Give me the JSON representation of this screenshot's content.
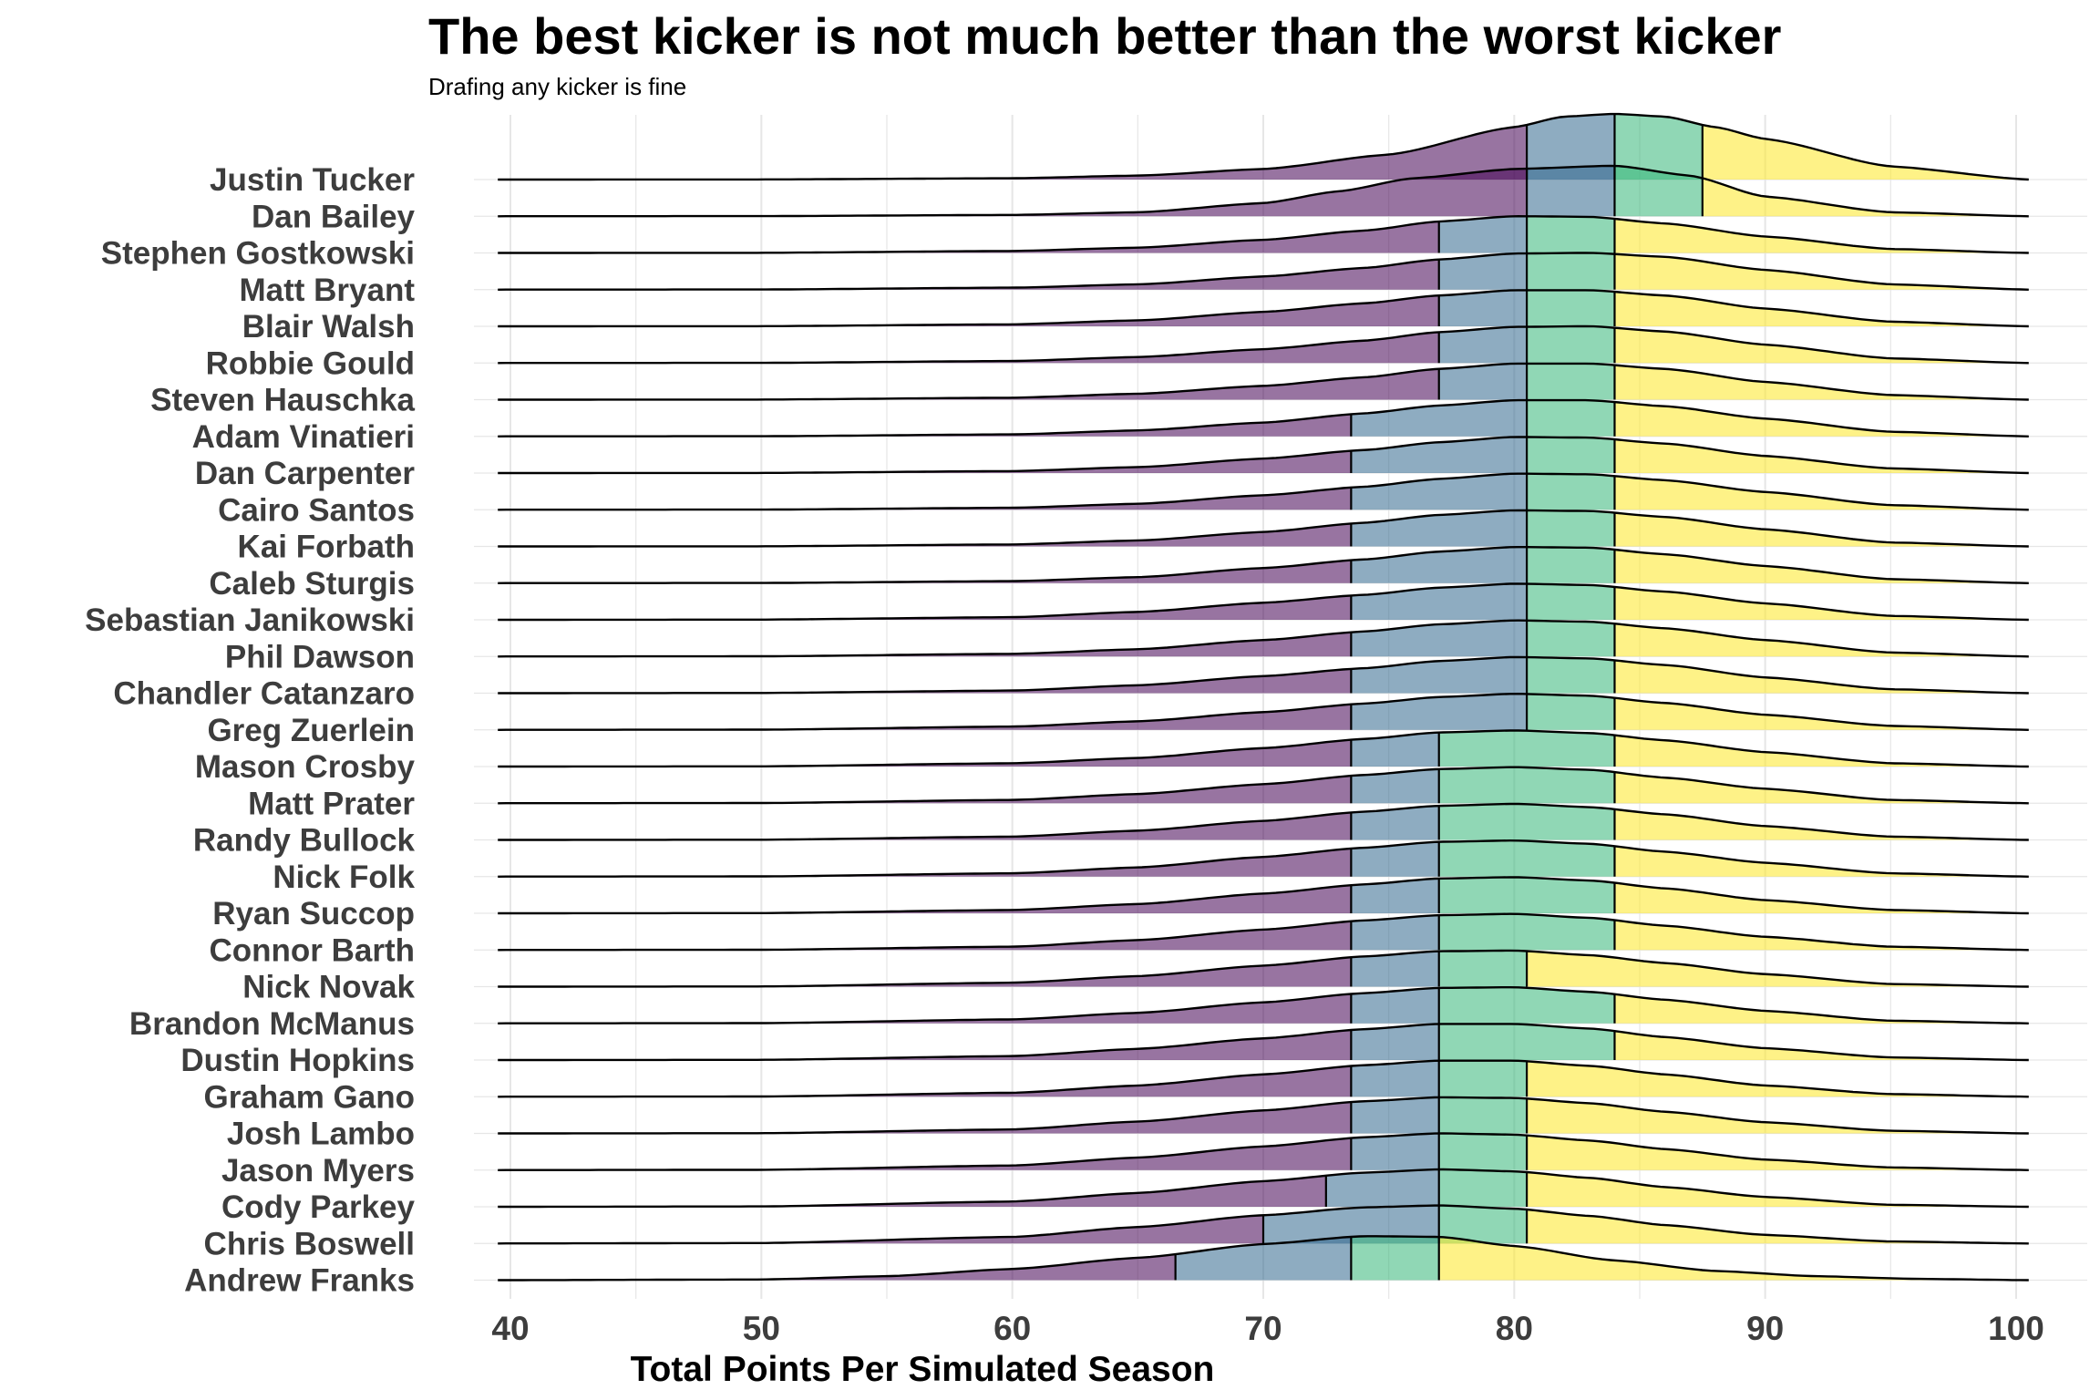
{
  "title": "The best kicker is not much better than the worst kicker",
  "subtitle": "Drafing any kicker is fine",
  "colors": {
    "q1": "#440154",
    "q2": "#31688E",
    "q3": "#35B779",
    "q4": "#FDE725",
    "outline": "#000000",
    "grid": "#e6e6e6"
  },
  "chart_data": {
    "type": "ridgeline",
    "xlabel": "Total Points Per Simulated Season",
    "ylabel": "",
    "xlim": [
      40,
      100
    ],
    "xticks": [
      40,
      50,
      60,
      70,
      80,
      90,
      100
    ],
    "fill_alpha": 0.55,
    "fill_by": "quartile",
    "series": [
      {
        "name": "Justin Tucker",
        "quartiles": [
          80.5,
          84,
          87.5
        ],
        "x": [
          39.5,
          50,
          60,
          65,
          70,
          75,
          80,
          82,
          84,
          86,
          88,
          90,
          95,
          100.5
        ],
        "density": [
          0,
          0.002,
          0.02,
          0.06,
          0.16,
          0.38,
          0.8,
          0.96,
          1.0,
          0.96,
          0.8,
          0.62,
          0.2,
          0
        ]
      },
      {
        "name": "Dan Bailey",
        "quartiles": [
          80.5,
          84,
          87.5
        ],
        "x": [
          39.5,
          50,
          60,
          65,
          70,
          73,
          76,
          80,
          84,
          87,
          90,
          95,
          100.5
        ],
        "density": [
          0,
          0.002,
          0.02,
          0.06,
          0.2,
          0.38,
          0.58,
          0.72,
          0.77,
          0.62,
          0.3,
          0.06,
          0
        ]
      },
      {
        "name": "Stephen Gostkowski",
        "quartiles": [
          77,
          80.5,
          84
        ],
        "x": [
          39.5,
          50,
          60,
          65,
          70,
          74,
          77,
          80,
          83,
          86,
          90,
          95,
          100.5
        ],
        "density": [
          0,
          0.002,
          0.03,
          0.08,
          0.2,
          0.34,
          0.48,
          0.56,
          0.55,
          0.45,
          0.25,
          0.06,
          0
        ]
      },
      {
        "name": "Matt Bryant",
        "quartiles": [
          77,
          80.5,
          84
        ],
        "x": [
          39.5,
          50,
          60,
          65,
          70,
          74,
          77,
          80,
          83,
          86,
          90,
          95,
          100.5
        ],
        "density": [
          0,
          0.002,
          0.03,
          0.08,
          0.2,
          0.33,
          0.46,
          0.55,
          0.56,
          0.5,
          0.3,
          0.08,
          0
        ]
      },
      {
        "name": "Blair Walsh",
        "quartiles": [
          77,
          80.5,
          84
        ],
        "x": [
          39.5,
          50,
          60,
          65,
          70,
          74,
          77,
          80,
          83,
          86,
          90,
          95,
          100.5
        ],
        "density": [
          0,
          0.002,
          0.03,
          0.09,
          0.22,
          0.35,
          0.47,
          0.55,
          0.55,
          0.47,
          0.27,
          0.07,
          0
        ]
      },
      {
        "name": "Robbie Gould",
        "quartiles": [
          77,
          80.5,
          84
        ],
        "x": [
          39.5,
          50,
          60,
          65,
          70,
          74,
          77,
          80,
          83,
          86,
          90,
          95,
          100.5
        ],
        "density": [
          0,
          0.002,
          0.03,
          0.09,
          0.21,
          0.34,
          0.47,
          0.55,
          0.56,
          0.48,
          0.28,
          0.07,
          0
        ]
      },
      {
        "name": "Steven Hauschka",
        "quartiles": [
          77,
          80.5,
          84
        ],
        "x": [
          39.5,
          50,
          60,
          65,
          70,
          74,
          77,
          80,
          83,
          86,
          90,
          95,
          100.5
        ],
        "density": [
          0,
          0.002,
          0.03,
          0.09,
          0.21,
          0.34,
          0.47,
          0.55,
          0.55,
          0.47,
          0.27,
          0.07,
          0
        ]
      },
      {
        "name": "Adam Vinatieri",
        "quartiles": [
          73.5,
          80.5,
          84
        ],
        "x": [
          39.5,
          50,
          60,
          65,
          70,
          74,
          77,
          80,
          83,
          86,
          90,
          95,
          100.5
        ],
        "density": [
          0,
          0.002,
          0.03,
          0.09,
          0.21,
          0.35,
          0.47,
          0.55,
          0.55,
          0.46,
          0.27,
          0.07,
          0
        ]
      },
      {
        "name": "Dan Carpenter",
        "quartiles": [
          73.5,
          80.5,
          84
        ],
        "x": [
          39.5,
          50,
          60,
          65,
          70,
          74,
          77,
          80,
          83,
          86,
          90,
          95,
          100.5
        ],
        "density": [
          0,
          0.002,
          0.03,
          0.09,
          0.22,
          0.35,
          0.47,
          0.55,
          0.54,
          0.45,
          0.26,
          0.07,
          0
        ]
      },
      {
        "name": "Cairo Santos",
        "quartiles": [
          73.5,
          80.5,
          84
        ],
        "x": [
          39.5,
          50,
          60,
          65,
          70,
          74,
          77,
          80,
          83,
          86,
          90,
          95,
          100.5
        ],
        "density": [
          0,
          0.002,
          0.03,
          0.09,
          0.22,
          0.35,
          0.47,
          0.55,
          0.54,
          0.45,
          0.27,
          0.07,
          0
        ]
      },
      {
        "name": "Kai Forbath",
        "quartiles": [
          73.5,
          80.5,
          84
        ],
        "x": [
          39.5,
          50,
          60,
          65,
          70,
          74,
          77,
          80,
          83,
          86,
          90,
          95,
          100.5
        ],
        "density": [
          0,
          0.002,
          0.03,
          0.09,
          0.22,
          0.36,
          0.48,
          0.55,
          0.54,
          0.45,
          0.26,
          0.06,
          0
        ]
      },
      {
        "name": "Caleb Sturgis",
        "quartiles": [
          73.5,
          80.5,
          84
        ],
        "x": [
          39.5,
          50,
          60,
          65,
          70,
          74,
          77,
          80,
          83,
          86,
          90,
          95,
          100.5
        ],
        "density": [
          0,
          0.002,
          0.03,
          0.09,
          0.23,
          0.36,
          0.48,
          0.55,
          0.54,
          0.44,
          0.26,
          0.06,
          0
        ]
      },
      {
        "name": "Sebastian Janikowski",
        "quartiles": [
          73.5,
          80.5,
          84
        ],
        "x": [
          39.5,
          50,
          60,
          65,
          70,
          74,
          77,
          80,
          83,
          86,
          90,
          95,
          100.5
        ],
        "density": [
          0,
          0.003,
          0.04,
          0.12,
          0.26,
          0.38,
          0.49,
          0.55,
          0.53,
          0.43,
          0.25,
          0.06,
          0
        ]
      },
      {
        "name": "Phil Dawson",
        "quartiles": [
          73.5,
          80.5,
          84
        ],
        "x": [
          39.5,
          50,
          60,
          65,
          70,
          74,
          77,
          80,
          83,
          86,
          90,
          95,
          100.5
        ],
        "density": [
          0,
          0.003,
          0.04,
          0.11,
          0.25,
          0.38,
          0.49,
          0.55,
          0.53,
          0.43,
          0.25,
          0.06,
          0
        ]
      },
      {
        "name": "Chandler Catanzaro",
        "quartiles": [
          73.5,
          80.5,
          84
        ],
        "x": [
          39.5,
          50,
          60,
          65,
          70,
          74,
          77,
          80,
          83,
          86,
          90,
          95,
          100.5
        ],
        "density": [
          0,
          0.003,
          0.04,
          0.12,
          0.26,
          0.38,
          0.49,
          0.55,
          0.53,
          0.43,
          0.24,
          0.06,
          0
        ]
      },
      {
        "name": "Greg Zuerlein",
        "quartiles": [
          73.5,
          80.5,
          84
        ],
        "x": [
          39.5,
          50,
          60,
          65,
          70,
          74,
          77,
          80,
          83,
          86,
          90,
          95,
          100.5
        ],
        "density": [
          0,
          0.003,
          0.05,
          0.13,
          0.27,
          0.4,
          0.5,
          0.55,
          0.52,
          0.41,
          0.23,
          0.06,
          0
        ]
      },
      {
        "name": "Mason Crosby",
        "quartiles": [
          73.5,
          77,
          84
        ],
        "x": [
          39.5,
          50,
          60,
          65,
          70,
          74,
          77,
          80,
          83,
          86,
          90,
          95,
          100.5
        ],
        "density": [
          0,
          0.003,
          0.05,
          0.13,
          0.28,
          0.42,
          0.52,
          0.55,
          0.51,
          0.4,
          0.22,
          0.05,
          0
        ]
      },
      {
        "name": "Matt Prater",
        "quartiles": [
          73.5,
          77,
          84
        ],
        "x": [
          39.5,
          50,
          60,
          65,
          70,
          74,
          77,
          80,
          83,
          86,
          90,
          95,
          100.5
        ],
        "density": [
          0,
          0.003,
          0.05,
          0.14,
          0.29,
          0.43,
          0.52,
          0.55,
          0.51,
          0.39,
          0.22,
          0.05,
          0
        ]
      },
      {
        "name": "Randy Bullock",
        "quartiles": [
          73.5,
          77,
          84
        ],
        "x": [
          39.5,
          50,
          60,
          65,
          70,
          74,
          77,
          80,
          83,
          86,
          90,
          95,
          100.5
        ],
        "density": [
          0,
          0.003,
          0.05,
          0.14,
          0.29,
          0.43,
          0.52,
          0.55,
          0.5,
          0.39,
          0.21,
          0.05,
          0
        ]
      },
      {
        "name": "Nick Folk",
        "quartiles": [
          73.5,
          77,
          84
        ],
        "x": [
          39.5,
          50,
          60,
          65,
          70,
          74,
          77,
          80,
          83,
          86,
          90,
          95,
          100.5
        ],
        "density": [
          0,
          0.003,
          0.05,
          0.14,
          0.3,
          0.44,
          0.53,
          0.55,
          0.5,
          0.38,
          0.21,
          0.05,
          0
        ]
      },
      {
        "name": "Ryan Succop",
        "quartiles": [
          73.5,
          77,
          84
        ],
        "x": [
          39.5,
          50,
          60,
          65,
          70,
          74,
          77,
          80,
          83,
          86,
          90,
          95,
          100.5
        ],
        "density": [
          0,
          0.003,
          0.05,
          0.14,
          0.3,
          0.44,
          0.53,
          0.55,
          0.5,
          0.38,
          0.2,
          0.05,
          0
        ]
      },
      {
        "name": "Connor Barth",
        "quartiles": [
          73.5,
          77,
          84
        ],
        "x": [
          39.5,
          50,
          60,
          65,
          70,
          74,
          77,
          80,
          83,
          86,
          90,
          95,
          100.5
        ],
        "density": [
          0,
          0.003,
          0.05,
          0.15,
          0.31,
          0.45,
          0.53,
          0.55,
          0.49,
          0.37,
          0.2,
          0.05,
          0
        ]
      },
      {
        "name": "Nick Novak",
        "quartiles": [
          73.5,
          77,
          80.5
        ],
        "x": [
          39.5,
          50,
          60,
          65,
          70,
          74,
          77,
          80,
          83,
          86,
          90,
          95,
          100.5
        ],
        "density": [
          0,
          0.003,
          0.06,
          0.16,
          0.32,
          0.46,
          0.54,
          0.55,
          0.48,
          0.36,
          0.19,
          0.04,
          0
        ]
      },
      {
        "name": "Brandon McManus",
        "quartiles": [
          73.5,
          77,
          84
        ],
        "x": [
          39.5,
          50,
          60,
          65,
          70,
          74,
          77,
          80,
          83,
          86,
          90,
          95,
          100.5
        ],
        "density": [
          0,
          0.003,
          0.06,
          0.16,
          0.32,
          0.46,
          0.54,
          0.55,
          0.48,
          0.36,
          0.19,
          0.04,
          0
        ]
      },
      {
        "name": "Dustin Hopkins",
        "quartiles": [
          73.5,
          77,
          84
        ],
        "x": [
          39.5,
          50,
          60,
          65,
          70,
          74,
          77,
          80,
          83,
          86,
          90,
          95,
          100.5
        ],
        "density": [
          0,
          0.003,
          0.06,
          0.17,
          0.33,
          0.47,
          0.55,
          0.55,
          0.48,
          0.35,
          0.18,
          0.04,
          0
        ]
      },
      {
        "name": "Graham Gano",
        "quartiles": [
          73.5,
          77,
          80.5
        ],
        "x": [
          39.5,
          50,
          60,
          65,
          70,
          74,
          77,
          80,
          83,
          86,
          90,
          95,
          100.5
        ],
        "density": [
          0,
          0.003,
          0.06,
          0.17,
          0.34,
          0.48,
          0.55,
          0.55,
          0.47,
          0.34,
          0.17,
          0.04,
          0
        ]
      },
      {
        "name": "Josh Lambo",
        "quartiles": [
          73.5,
          77,
          80.5
        ],
        "x": [
          39.5,
          50,
          60,
          65,
          70,
          74,
          77,
          80,
          83,
          86,
          90,
          95,
          100.5
        ],
        "density": [
          0,
          0.003,
          0.06,
          0.18,
          0.35,
          0.49,
          0.55,
          0.54,
          0.46,
          0.33,
          0.17,
          0.04,
          0
        ]
      },
      {
        "name": "Jason Myers",
        "quartiles": [
          73.5,
          77,
          80.5
        ],
        "x": [
          39.5,
          50,
          60,
          65,
          70,
          74,
          77,
          80,
          83,
          86,
          90,
          95,
          100.5
        ],
        "density": [
          0,
          0.004,
          0.07,
          0.19,
          0.36,
          0.5,
          0.56,
          0.54,
          0.45,
          0.32,
          0.16,
          0.04,
          0
        ]
      },
      {
        "name": "Cody Parkey",
        "quartiles": [
          72.5,
          77,
          80.5
        ],
        "x": [
          39.5,
          50,
          60,
          65,
          70,
          74,
          77,
          80,
          83,
          86,
          90,
          95,
          100.5
        ],
        "density": [
          0,
          0.005,
          0.08,
          0.21,
          0.39,
          0.52,
          0.57,
          0.54,
          0.44,
          0.3,
          0.15,
          0.03,
          0
        ]
      },
      {
        "name": "Chris Boswell",
        "quartiles": [
          70,
          77,
          80.5
        ],
        "x": [
          39.5,
          50,
          60,
          65,
          70,
          74,
          77,
          80,
          83,
          86,
          90,
          95,
          100.5
        ],
        "density": [
          0,
          0.006,
          0.1,
          0.25,
          0.43,
          0.55,
          0.58,
          0.53,
          0.42,
          0.28,
          0.13,
          0.03,
          0
        ]
      },
      {
        "name": "Andrew Franks",
        "quartiles": [
          66.5,
          73.5,
          77
        ],
        "x": [
          39.5,
          50,
          55,
          60,
          65,
          70,
          74,
          77,
          80,
          84,
          88,
          92,
          96,
          100.5
        ],
        "density": [
          0,
          0.01,
          0.06,
          0.17,
          0.34,
          0.55,
          0.67,
          0.66,
          0.52,
          0.3,
          0.14,
          0.06,
          0.02,
          0
        ]
      }
    ]
  }
}
